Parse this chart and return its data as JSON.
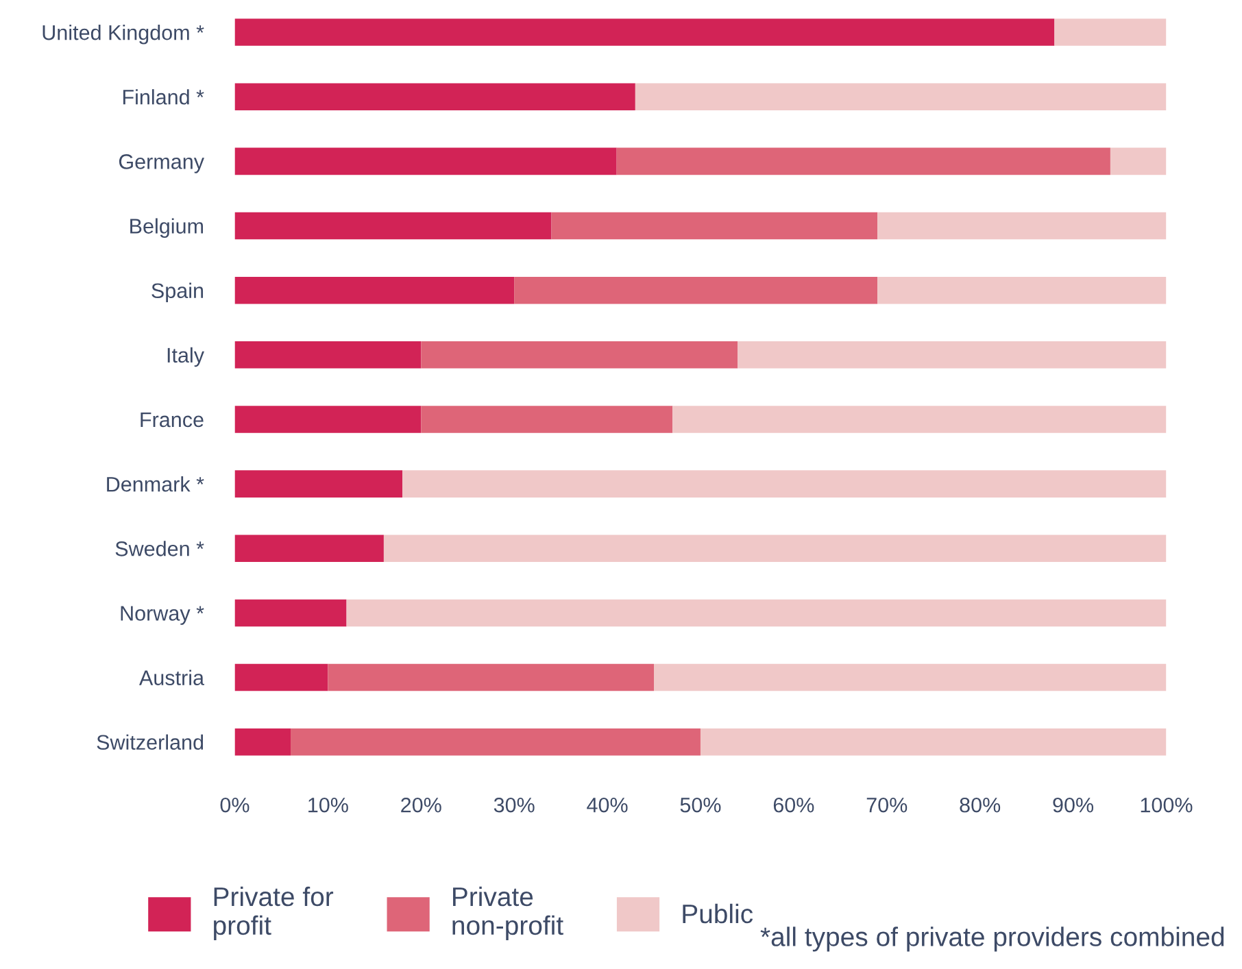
{
  "chart_data": {
    "type": "bar",
    "orientation": "horizontal",
    "stacked": true,
    "categories": [
      "United Kingdom *",
      "Finland *",
      "Germany",
      "Belgium",
      "Spain",
      "Italy",
      "France",
      "Denmark *",
      "Sweden *",
      "Norway *",
      "Austria",
      "Switzerland"
    ],
    "series": [
      {
        "name": "Private for\nprofit",
        "color": "#d22356",
        "values": [
          88,
          43,
          41,
          34,
          30,
          20,
          20,
          18,
          16,
          12,
          10,
          6
        ]
      },
      {
        "name": "Private\nnon-profit",
        "color": "#de6578",
        "values": [
          0,
          0,
          53,
          35,
          39,
          34,
          27,
          0,
          0,
          0,
          35,
          44
        ]
      },
      {
        "name": "Public",
        "color": "#f0c8c8",
        "values": [
          12,
          57,
          6,
          31,
          31,
          46,
          53,
          82,
          84,
          88,
          55,
          50
        ]
      }
    ],
    "xlim": [
      0,
      100
    ],
    "xticks": [
      {
        "value": 0,
        "label": "0%"
      },
      {
        "value": 10,
        "label": "10%"
      },
      {
        "value": 20,
        "label": "20%"
      },
      {
        "value": 30,
        "label": "30%"
      },
      {
        "value": 40,
        "label": "40%"
      },
      {
        "value": 50,
        "label": "50%"
      },
      {
        "value": 60,
        "label": "60%"
      },
      {
        "value": 70,
        "label": "70%"
      },
      {
        "value": 80,
        "label": "80%"
      },
      {
        "value": 90,
        "label": "90%"
      },
      {
        "value": 100,
        "label": "100%"
      }
    ],
    "grid": false,
    "legend": "bottom",
    "annotations": [
      "*all types of private providers combined"
    ]
  }
}
